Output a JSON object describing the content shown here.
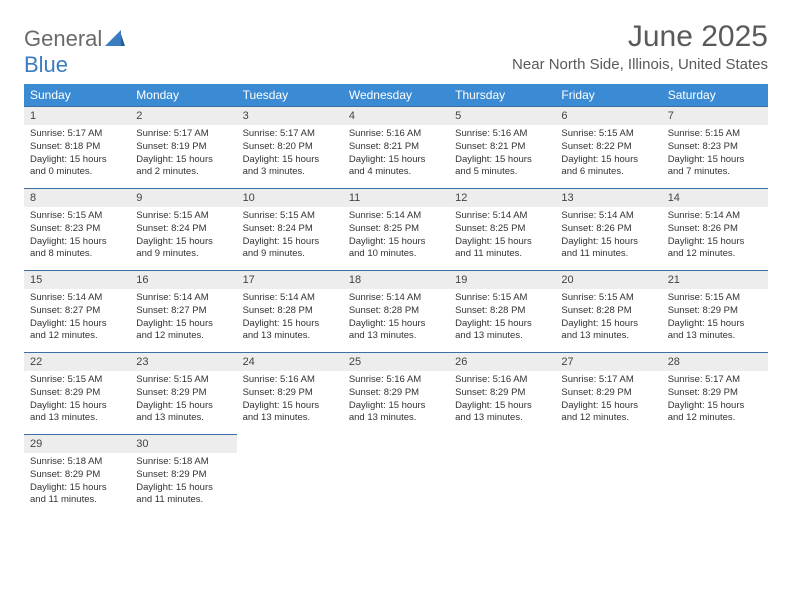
{
  "logo": {
    "part1": "General",
    "part2": "Blue"
  },
  "title": "June 2025",
  "location": "Near North Side, Illinois, United States",
  "colors": {
    "header_bg": "#3b8bd4",
    "header_text": "#ffffff",
    "daynum_bg": "#ededed",
    "day_border": "#3b6ea5",
    "logo_gray": "#6a6a6a",
    "logo_blue": "#3b7bbf"
  },
  "weekdays": [
    "Sunday",
    "Monday",
    "Tuesday",
    "Wednesday",
    "Thursday",
    "Friday",
    "Saturday"
  ],
  "weeks": [
    [
      {
        "n": "1",
        "sr": "5:17 AM",
        "ss": "8:18 PM",
        "dl": "15 hours and 0 minutes."
      },
      {
        "n": "2",
        "sr": "5:17 AM",
        "ss": "8:19 PM",
        "dl": "15 hours and 2 minutes."
      },
      {
        "n": "3",
        "sr": "5:17 AM",
        "ss": "8:20 PM",
        "dl": "15 hours and 3 minutes."
      },
      {
        "n": "4",
        "sr": "5:16 AM",
        "ss": "8:21 PM",
        "dl": "15 hours and 4 minutes."
      },
      {
        "n": "5",
        "sr": "5:16 AM",
        "ss": "8:21 PM",
        "dl": "15 hours and 5 minutes."
      },
      {
        "n": "6",
        "sr": "5:15 AM",
        "ss": "8:22 PM",
        "dl": "15 hours and 6 minutes."
      },
      {
        "n": "7",
        "sr": "5:15 AM",
        "ss": "8:23 PM",
        "dl": "15 hours and 7 minutes."
      }
    ],
    [
      {
        "n": "8",
        "sr": "5:15 AM",
        "ss": "8:23 PM",
        "dl": "15 hours and 8 minutes."
      },
      {
        "n": "9",
        "sr": "5:15 AM",
        "ss": "8:24 PM",
        "dl": "15 hours and 9 minutes."
      },
      {
        "n": "10",
        "sr": "5:15 AM",
        "ss": "8:24 PM",
        "dl": "15 hours and 9 minutes."
      },
      {
        "n": "11",
        "sr": "5:14 AM",
        "ss": "8:25 PM",
        "dl": "15 hours and 10 minutes."
      },
      {
        "n": "12",
        "sr": "5:14 AM",
        "ss": "8:25 PM",
        "dl": "15 hours and 11 minutes."
      },
      {
        "n": "13",
        "sr": "5:14 AM",
        "ss": "8:26 PM",
        "dl": "15 hours and 11 minutes."
      },
      {
        "n": "14",
        "sr": "5:14 AM",
        "ss": "8:26 PM",
        "dl": "15 hours and 12 minutes."
      }
    ],
    [
      {
        "n": "15",
        "sr": "5:14 AM",
        "ss": "8:27 PM",
        "dl": "15 hours and 12 minutes."
      },
      {
        "n": "16",
        "sr": "5:14 AM",
        "ss": "8:27 PM",
        "dl": "15 hours and 12 minutes."
      },
      {
        "n": "17",
        "sr": "5:14 AM",
        "ss": "8:28 PM",
        "dl": "15 hours and 13 minutes."
      },
      {
        "n": "18",
        "sr": "5:14 AM",
        "ss": "8:28 PM",
        "dl": "15 hours and 13 minutes."
      },
      {
        "n": "19",
        "sr": "5:15 AM",
        "ss": "8:28 PM",
        "dl": "15 hours and 13 minutes."
      },
      {
        "n": "20",
        "sr": "5:15 AM",
        "ss": "8:28 PM",
        "dl": "15 hours and 13 minutes."
      },
      {
        "n": "21",
        "sr": "5:15 AM",
        "ss": "8:29 PM",
        "dl": "15 hours and 13 minutes."
      }
    ],
    [
      {
        "n": "22",
        "sr": "5:15 AM",
        "ss": "8:29 PM",
        "dl": "15 hours and 13 minutes."
      },
      {
        "n": "23",
        "sr": "5:15 AM",
        "ss": "8:29 PM",
        "dl": "15 hours and 13 minutes."
      },
      {
        "n": "24",
        "sr": "5:16 AM",
        "ss": "8:29 PM",
        "dl": "15 hours and 13 minutes."
      },
      {
        "n": "25",
        "sr": "5:16 AM",
        "ss": "8:29 PM",
        "dl": "15 hours and 13 minutes."
      },
      {
        "n": "26",
        "sr": "5:16 AM",
        "ss": "8:29 PM",
        "dl": "15 hours and 13 minutes."
      },
      {
        "n": "27",
        "sr": "5:17 AM",
        "ss": "8:29 PM",
        "dl": "15 hours and 12 minutes."
      },
      {
        "n": "28",
        "sr": "5:17 AM",
        "ss": "8:29 PM",
        "dl": "15 hours and 12 minutes."
      }
    ],
    [
      {
        "n": "29",
        "sr": "5:18 AM",
        "ss": "8:29 PM",
        "dl": "15 hours and 11 minutes."
      },
      {
        "n": "30",
        "sr": "5:18 AM",
        "ss": "8:29 PM",
        "dl": "15 hours and 11 minutes."
      },
      null,
      null,
      null,
      null,
      null
    ]
  ],
  "labels": {
    "sunrise": "Sunrise: ",
    "sunset": "Sunset: ",
    "daylight": "Daylight: "
  }
}
